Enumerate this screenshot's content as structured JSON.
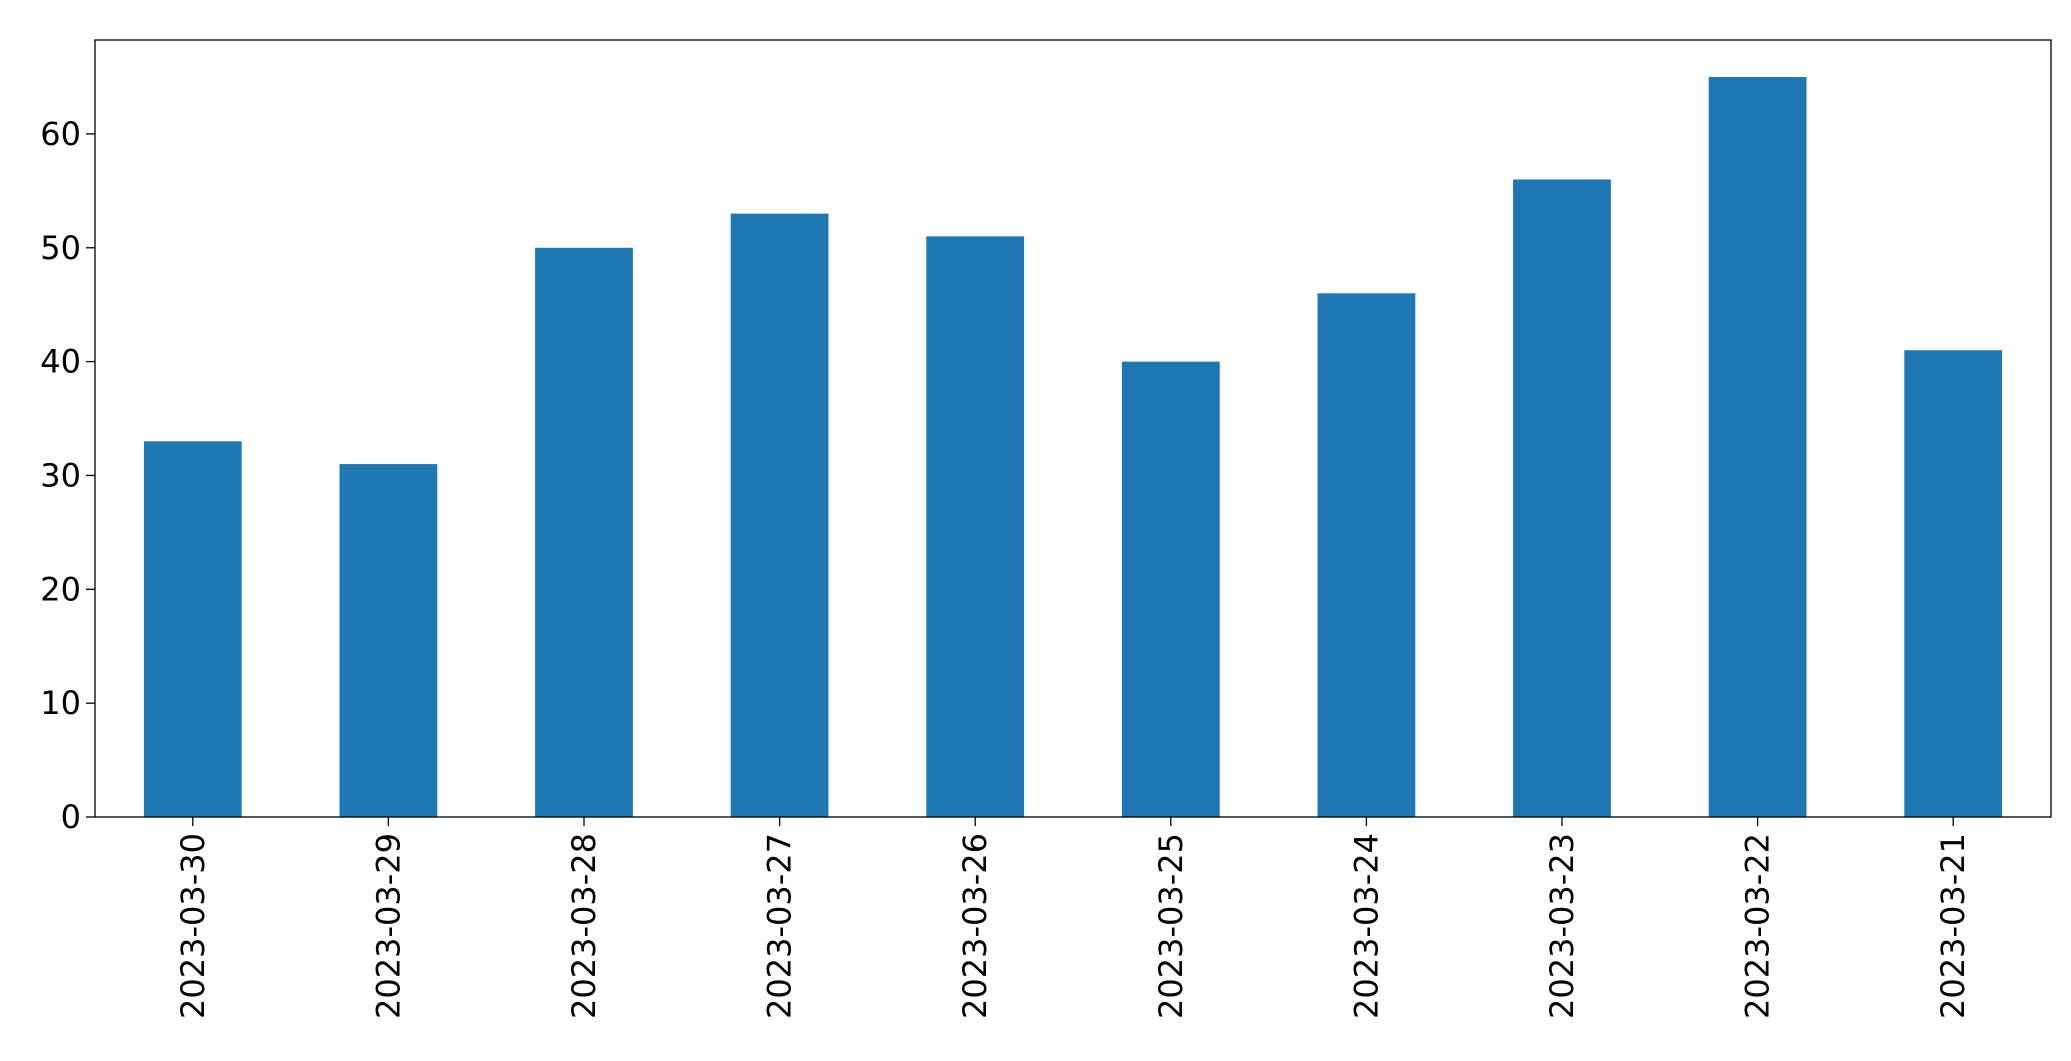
{
  "chart_data": {
    "type": "bar",
    "categories": [
      "2023-03-30",
      "2023-03-29",
      "2023-03-28",
      "2023-03-27",
      "2023-03-26",
      "2023-03-25",
      "2023-03-24",
      "2023-03-23",
      "2023-03-22",
      "2023-03-21"
    ],
    "values": [
      33,
      31,
      50,
      53,
      51,
      40,
      46,
      56,
      65,
      41
    ],
    "color": "#1f77b4",
    "ylim": [
      0,
      68.25
    ],
    "yticks": [
      0,
      10,
      20,
      30,
      40,
      50,
      60
    ],
    "grid": false
  }
}
